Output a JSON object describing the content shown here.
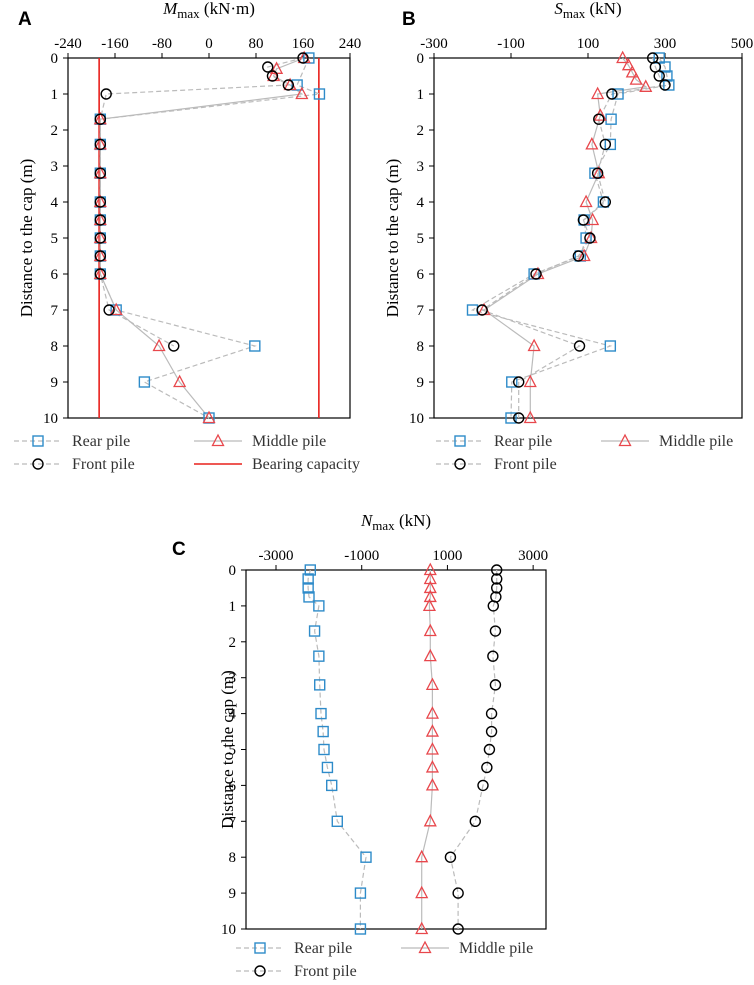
{
  "colors": {
    "rear": "#2E8BC9",
    "middle": "#E8474C",
    "front": "#000000",
    "bearing": "#E8201C",
    "line": "#BBBBBB"
  },
  "chart_data": [
    {
      "id": "A",
      "letter": "A",
      "type": "scatter",
      "title": "M",
      "title_sub": "max",
      "title_unit": " (kN·m)",
      "ylabel": "Distance to the cap (m)",
      "xlim": [
        -240,
        240
      ],
      "xticks": [
        -240,
        -160,
        -80,
        0,
        80,
        160,
        240
      ],
      "ylim": [
        0,
        10
      ],
      "yticks": [
        0,
        1,
        2,
        3,
        4,
        5,
        6,
        7,
        8,
        9,
        10
      ],
      "bearing_capacity": [
        -187,
        187
      ],
      "series": [
        {
          "key": "rear",
          "name": "Rear pile",
          "marker": "square",
          "style": "dashed",
          "points": [
            [
              170,
              0
            ],
            [
              150,
              0.75
            ],
            [
              188,
              1
            ],
            [
              -185,
              1.7
            ],
            [
              -185,
              2.4
            ],
            [
              -185,
              3.2
            ],
            [
              -185,
              4
            ],
            [
              -185,
              4.5
            ],
            [
              -185,
              5
            ],
            [
              -185,
              5.5
            ],
            [
              -185,
              6
            ],
            [
              -158,
              7
            ],
            [
              78,
              8
            ],
            [
              -110,
              9
            ],
            [
              0,
              10
            ]
          ]
        },
        {
          "key": "middle",
          "name": "Middle pile",
          "marker": "triangle",
          "style": "solid",
          "points": [
            [
              162,
              0
            ],
            [
              115,
              0.3
            ],
            [
              110,
              0.5
            ],
            [
              138,
              0.75
            ],
            [
              158,
              1
            ],
            [
              -185,
              1.7
            ],
            [
              -185,
              2.4
            ],
            [
              -185,
              3.2
            ],
            [
              -185,
              4
            ],
            [
              -185,
              4.5
            ],
            [
              -185,
              5
            ],
            [
              -185,
              5.5
            ],
            [
              -185,
              6
            ],
            [
              -158,
              7
            ],
            [
              -85,
              8
            ],
            [
              -50,
              9
            ],
            [
              0,
              10
            ]
          ]
        },
        {
          "key": "front",
          "name": "Front pile",
          "marker": "circle",
          "style": "dashed",
          "points": [
            [
              160,
              0
            ],
            [
              100,
              0.25
            ],
            [
              108,
              0.5
            ],
            [
              135,
              0.75
            ],
            [
              -175,
              1
            ],
            [
              -185,
              1.7
            ],
            [
              -185,
              2.4
            ],
            [
              -185,
              3.2
            ],
            [
              -185,
              4
            ],
            [
              -185,
              4.5
            ],
            [
              -185,
              5
            ],
            [
              -185,
              5.5
            ],
            [
              -185,
              6
            ],
            [
              -170,
              7
            ],
            [
              -60,
              8
            ]
          ]
        }
      ]
    },
    {
      "id": "B",
      "letter": "B",
      "type": "scatter",
      "title": "S",
      "title_sub": "max",
      "title_unit": " (kN)",
      "ylabel": "Distance to the cap (m)",
      "xlim": [
        -300,
        500
      ],
      "xticks": [
        -300,
        -100,
        100,
        300,
        500
      ],
      "ylim": [
        0,
        10
      ],
      "yticks": [
        0,
        1,
        2,
        3,
        4,
        5,
        6,
        7,
        8,
        9,
        10
      ],
      "series": [
        {
          "key": "rear",
          "name": "Rear pile",
          "marker": "square",
          "style": "dashed",
          "points": [
            [
              285,
              0
            ],
            [
              300,
              0.25
            ],
            [
              305,
              0.5
            ],
            [
              310,
              0.75
            ],
            [
              178,
              1
            ],
            [
              160,
              1.7
            ],
            [
              158,
              2.4
            ],
            [
              118,
              3.2
            ],
            [
              140,
              4
            ],
            [
              90,
              4.5
            ],
            [
              95,
              5
            ],
            [
              80,
              5.5
            ],
            [
              -40,
              6
            ],
            [
              -200,
              7
            ],
            [
              158,
              8
            ],
            [
              -98,
              9
            ],
            [
              -100,
              10
            ]
          ]
        },
        {
          "key": "middle",
          "name": "Middle pile",
          "marker": "triangle",
          "style": "solid",
          "points": [
            [
              190,
              0
            ],
            [
              205,
              0.2
            ],
            [
              215,
              0.4
            ],
            [
              225,
              0.6
            ],
            [
              250,
              0.8
            ],
            [
              125,
              1
            ],
            [
              132,
              1.6
            ],
            [
              110,
              2.4
            ],
            [
              128,
              3.2
            ],
            [
              95,
              4
            ],
            [
              112,
              4.5
            ],
            [
              108,
              5
            ],
            [
              90,
              5.5
            ],
            [
              -30,
              6
            ],
            [
              -170,
              7
            ],
            [
              -40,
              8
            ],
            [
              -50,
              9
            ],
            [
              -50,
              10
            ]
          ]
        },
        {
          "key": "front",
          "name": "Front pile",
          "marker": "circle",
          "style": "dashed",
          "points": [
            [
              268,
              0
            ],
            [
              275,
              0.25
            ],
            [
              285,
              0.5
            ],
            [
              300,
              0.75
            ],
            [
              162,
              1
            ],
            [
              128,
              1.7
            ],
            [
              145,
              2.4
            ],
            [
              125,
              3.2
            ],
            [
              145,
              4
            ],
            [
              88,
              4.5
            ],
            [
              105,
              5
            ],
            [
              75,
              5.5
            ],
            [
              -35,
              6
            ],
            [
              -175,
              7
            ],
            [
              78,
              8
            ],
            [
              -80,
              9
            ],
            [
              -80,
              10
            ]
          ]
        }
      ]
    },
    {
      "id": "C",
      "letter": "C",
      "type": "scatter",
      "title": "N",
      "title_sub": "max",
      "title_unit": " (kN)",
      "ylabel": "Distance to the cap (m)",
      "xlim": [
        -3700,
        3300
      ],
      "xticks": [
        -3000,
        -1000,
        1000,
        3000
      ],
      "ylim": [
        0,
        10
      ],
      "yticks": [
        0,
        1,
        2,
        3,
        4,
        5,
        6,
        7,
        8,
        9,
        10
      ],
      "series": [
        {
          "key": "rear",
          "name": "Rear pile",
          "marker": "square",
          "style": "dashed",
          "points": [
            [
              -2200,
              0
            ],
            [
              -2250,
              0.25
            ],
            [
              -2250,
              0.5
            ],
            [
              -2230,
              0.75
            ],
            [
              -2000,
              1
            ],
            [
              -2100,
              1.7
            ],
            [
              -2000,
              2.4
            ],
            [
              -1980,
              3.2
            ],
            [
              -1950,
              4
            ],
            [
              -1900,
              4.5
            ],
            [
              -1880,
              5
            ],
            [
              -1800,
              5.5
            ],
            [
              -1700,
              6
            ],
            [
              -1570,
              7
            ],
            [
              -900,
              8
            ],
            [
              -1030,
              9
            ],
            [
              -1030,
              10
            ]
          ]
        },
        {
          "key": "middle",
          "name": "Middle pile",
          "marker": "triangle",
          "style": "solid",
          "points": [
            [
              600,
              0
            ],
            [
              600,
              0.25
            ],
            [
              600,
              0.5
            ],
            [
              600,
              0.75
            ],
            [
              580,
              1
            ],
            [
              600,
              1.7
            ],
            [
              600,
              2.4
            ],
            [
              650,
              3.2
            ],
            [
              650,
              4
            ],
            [
              650,
              4.5
            ],
            [
              650,
              5
            ],
            [
              650,
              5.5
            ],
            [
              650,
              6
            ],
            [
              600,
              7
            ],
            [
              400,
              8
            ],
            [
              400,
              9
            ],
            [
              400,
              10
            ]
          ]
        },
        {
          "key": "front",
          "name": "Front pile",
          "marker": "circle",
          "style": "dashed",
          "points": [
            [
              2150,
              0
            ],
            [
              2150,
              0.25
            ],
            [
              2150,
              0.5
            ],
            [
              2130,
              0.75
            ],
            [
              2070,
              1
            ],
            [
              2120,
              1.7
            ],
            [
              2060,
              2.4
            ],
            [
              2120,
              3.2
            ],
            [
              2030,
              4
            ],
            [
              2030,
              4.5
            ],
            [
              1980,
              5
            ],
            [
              1920,
              5.5
            ],
            [
              1830,
              6
            ],
            [
              1650,
              7
            ],
            [
              1070,
              8
            ],
            [
              1250,
              9
            ],
            [
              1250,
              10
            ]
          ]
        }
      ]
    }
  ],
  "legends": {
    "A": [
      {
        "key": "rear",
        "label": "Rear pile",
        "marker": "square",
        "style": "dashed"
      },
      {
        "key": "middle",
        "label": "Middle pile",
        "marker": "triangle",
        "style": "solid"
      },
      {
        "key": "front",
        "label": "Front pile",
        "marker": "circle",
        "style": "dashed"
      },
      {
        "key": "bearing",
        "label": "Bearing capacity",
        "marker": "none",
        "style": "solid-red"
      }
    ],
    "B": [
      {
        "key": "rear",
        "label": "Rear pile",
        "marker": "square",
        "style": "dashed"
      },
      {
        "key": "middle",
        "label": "Middle pile",
        "marker": "triangle",
        "style": "solid"
      },
      {
        "key": "front",
        "label": "Front pile",
        "marker": "circle",
        "style": "dashed"
      }
    ],
    "C": [
      {
        "key": "rear",
        "label": "Rear pile",
        "marker": "square",
        "style": "dashed"
      },
      {
        "key": "middle",
        "label": "Middle pile",
        "marker": "triangle",
        "style": "solid"
      },
      {
        "key": "front",
        "label": "Front pile",
        "marker": "circle",
        "style": "dashed"
      }
    ]
  }
}
